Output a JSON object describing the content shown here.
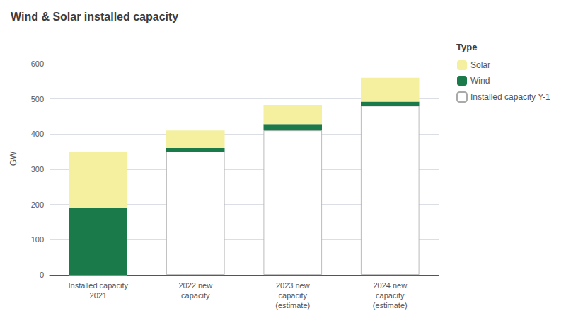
{
  "chart_data": {
    "type": "bar",
    "title": "Wind & Solar installed capacity",
    "ylabel": "GW",
    "categories": [
      "Installed capacity\n2021",
      "2022 new\ncapacity",
      "2023 new\ncapacity\n(estimate)",
      "2024 new\ncapacity\n(estimate)"
    ],
    "series": [
      {
        "name": "Installed capacity Y-1",
        "color": "#ffffff",
        "values": [
          0,
          350,
          410,
          480
        ]
      },
      {
        "name": "Wind",
        "color": "#1a7a4a",
        "values": [
          190,
          10,
          18,
          12
        ]
      },
      {
        "name": "Solar",
        "color": "#f5f0a0",
        "values": [
          160,
          50,
          55,
          68
        ]
      }
    ],
    "stacked": true,
    "ylim": [
      0,
      660
    ],
    "yticks": [
      0,
      100,
      200,
      300,
      400,
      500,
      600
    ],
    "grid": true,
    "legend": "right",
    "legend_title": "Type"
  }
}
